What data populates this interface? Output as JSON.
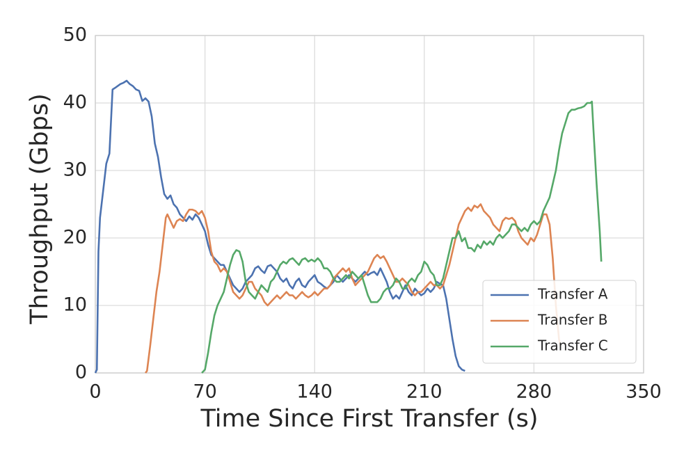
{
  "chart_data": {
    "type": "line",
    "xlabel": "Time Since First Transfer (s)",
    "ylabel": "Throughput (Gbps)",
    "xlim": [
      0,
      350
    ],
    "xticks": [
      0,
      70,
      140,
      210,
      280,
      350
    ],
    "ylim": [
      0,
      50
    ],
    "yticks": [
      0,
      10,
      20,
      30,
      40,
      50
    ],
    "grid": true,
    "legend": "lower right",
    "series": [
      {
        "name": "Transfer A",
        "color": "#4c72b0",
        "x": [
          0,
          1,
          2,
          3,
          5,
          7,
          9,
          11,
          13,
          16,
          18,
          20,
          22,
          24,
          26,
          28,
          30,
          32,
          34,
          36,
          38,
          40,
          42,
          44,
          46,
          48,
          50,
          52,
          54,
          56,
          58,
          60,
          62,
          64,
          66,
          68,
          70,
          72,
          74,
          76,
          78,
          80,
          82,
          84,
          86,
          88,
          90,
          92,
          94,
          96,
          98,
          100,
          102,
          104,
          106,
          108,
          110,
          112,
          114,
          116,
          118,
          120,
          122,
          124,
          126,
          128,
          130,
          132,
          134,
          136,
          138,
          140,
          142,
          144,
          146,
          148,
          150,
          152,
          154,
          156,
          158,
          160,
          162,
          164,
          166,
          168,
          170,
          172,
          174,
          176,
          178,
          180,
          182,
          184,
          186,
          188,
          190,
          192,
          194,
          196,
          198,
          200,
          202,
          204,
          206,
          208,
          210,
          212,
          214,
          216,
          218,
          220,
          222,
          224,
          226,
          228,
          230,
          232,
          234,
          236
        ],
        "values": [
          0,
          0.5,
          18,
          23,
          27,
          31,
          32.5,
          42,
          42.3,
          42.8,
          43.0,
          43.3,
          42.8,
          42.5,
          42,
          41.8,
          40.3,
          40.7,
          40.2,
          38,
          34,
          32,
          29,
          26.5,
          25.8,
          26.3,
          25,
          24.5,
          23.5,
          23,
          22.5,
          23.2,
          22.7,
          23.5,
          23,
          22,
          21,
          19,
          17.5,
          17,
          16.5,
          16,
          16,
          15,
          14,
          13,
          12.5,
          12,
          12.5,
          13.5,
          14,
          14.5,
          15.5,
          15.8,
          15.2,
          14.8,
          15.8,
          16,
          15.5,
          15,
          14,
          13.5,
          14,
          13,
          12.5,
          13.5,
          14,
          13,
          12.7,
          13.5,
          14,
          14.5,
          13.5,
          13.2,
          12.8,
          12.5,
          13,
          13.5,
          14.5,
          14,
          13.5,
          14,
          14.5,
          14,
          13.5,
          14,
          14.5,
          15,
          14.5,
          14.8,
          15,
          14.5,
          15.5,
          14.5,
          13.5,
          12,
          11,
          11.5,
          11,
          12,
          13,
          12,
          11.5,
          12.5,
          12,
          11.5,
          11.8,
          12.5,
          12,
          12.5,
          13.5,
          13.2,
          13,
          11,
          8,
          5,
          2.5,
          1,
          0.5,
          0.3
        ]
      },
      {
        "name": "Transfer B",
        "color": "#dd8452",
        "x": [
          32,
          33,
          35,
          37,
          39,
          41,
          43,
          45,
          46,
          48,
          50,
          52,
          54,
          56,
          58,
          60,
          62,
          64,
          66,
          68,
          70,
          72,
          74,
          76,
          78,
          80,
          82,
          84,
          86,
          88,
          90,
          92,
          94,
          96,
          98,
          100,
          102,
          104,
          106,
          108,
          110,
          112,
          114,
          116,
          118,
          120,
          122,
          124,
          126,
          128,
          130,
          132,
          134,
          136,
          138,
          140,
          142,
          144,
          146,
          148,
          150,
          152,
          154,
          156,
          158,
          160,
          162,
          164,
          166,
          168,
          170,
          172,
          174,
          176,
          178,
          180,
          182,
          184,
          186,
          188,
          190,
          192,
          194,
          196,
          198,
          200,
          202,
          204,
          206,
          208,
          210,
          212,
          214,
          216,
          218,
          220,
          222,
          224,
          226,
          228,
          230,
          232,
          234,
          236,
          238,
          240,
          242,
          244,
          246,
          248,
          250,
          252,
          254,
          256,
          258,
          260,
          262,
          264,
          266,
          268,
          270,
          272,
          274,
          276,
          278,
          280,
          282,
          284,
          286,
          288,
          290,
          292,
          294,
          296,
          297
        ],
        "values": [
          0,
          0.3,
          4,
          8,
          12,
          15,
          19,
          23,
          23.5,
          22.5,
          21.5,
          22.5,
          22.8,
          22.5,
          23.5,
          24.2,
          24.2,
          24,
          23.5,
          24,
          23,
          21,
          18,
          16.5,
          16,
          15,
          15.5,
          15,
          13.5,
          12,
          11.5,
          11,
          11.5,
          12.5,
          13.5,
          13.5,
          12.5,
          12,
          11.5,
          10.5,
          10,
          10.5,
          11,
          11.5,
          11,
          11.5,
          12,
          11.5,
          11.5,
          11,
          11.5,
          12,
          11.5,
          11.2,
          11.5,
          12,
          11.5,
          12,
          12.5,
          12.5,
          13,
          14,
          14.5,
          15,
          15.5,
          15,
          15.5,
          14,
          13,
          13.5,
          14,
          14.5,
          15,
          16,
          17,
          17.5,
          17,
          17.3,
          16.5,
          15.5,
          14.5,
          13.5,
          13.5,
          14,
          13.5,
          13,
          12,
          11.5,
          12,
          12,
          12.5,
          13,
          13.5,
          13,
          13,
          12.5,
          13,
          14.5,
          16,
          18,
          20,
          22,
          23,
          24,
          24.5,
          24,
          24.8,
          24.5,
          25,
          24,
          23.5,
          23,
          22,
          21.5,
          21,
          22.5,
          23,
          22.8,
          23,
          22.5,
          21,
          20,
          19.5,
          19,
          20,
          19.5,
          20.5,
          22,
          23.5,
          23.5,
          22,
          17,
          10,
          5,
          4
        ]
      },
      {
        "name": "Transfer C",
        "color": "#55a868",
        "x": [
          68,
          70,
          72,
          74,
          76,
          78,
          80,
          82,
          84,
          86,
          88,
          90,
          92,
          94,
          96,
          98,
          100,
          102,
          104,
          106,
          108,
          110,
          112,
          114,
          116,
          118,
          120,
          122,
          124,
          126,
          128,
          130,
          132,
          134,
          136,
          138,
          140,
          142,
          144,
          146,
          148,
          150,
          152,
          154,
          156,
          158,
          160,
          162,
          164,
          166,
          168,
          170,
          172,
          174,
          176,
          178,
          180,
          182,
          184,
          186,
          188,
          190,
          192,
          194,
          196,
          198,
          200,
          202,
          204,
          206,
          208,
          210,
          212,
          214,
          216,
          218,
          220,
          222,
          224,
          226,
          228,
          230,
          232,
          234,
          236,
          238,
          240,
          242,
          244,
          246,
          248,
          250,
          252,
          254,
          256,
          258,
          260,
          262,
          264,
          266,
          268,
          270,
          272,
          274,
          276,
          278,
          280,
          282,
          284,
          286,
          288,
          290,
          292,
          294,
          296,
          298,
          300,
          302,
          304,
          306,
          308,
          310,
          312,
          314,
          316,
          317,
          318,
          320,
          322,
          323
        ],
        "values": [
          0,
          0.5,
          3,
          6,
          8.5,
          10,
          11,
          12,
          14,
          16,
          17.5,
          18.2,
          18,
          16.5,
          13.5,
          12,
          11.5,
          11,
          12,
          13,
          12.5,
          12,
          13.5,
          14,
          15,
          16,
          16.5,
          16.2,
          16.8,
          17,
          16.5,
          16,
          16.8,
          17,
          16.5,
          16.8,
          16.5,
          17,
          16.5,
          15.5,
          15.5,
          15,
          14,
          13.5,
          13.5,
          14,
          14.5,
          14,
          15,
          14.5,
          14,
          14.5,
          13,
          11.5,
          10.5,
          10.5,
          10.5,
          11,
          12,
          12.5,
          12.5,
          13,
          14,
          13.5,
          12.5,
          12.5,
          13.5,
          14,
          13.5,
          14.5,
          15,
          16.5,
          16,
          15,
          14.5,
          13,
          13,
          14,
          16,
          18,
          20,
          20,
          21,
          19.5,
          20,
          18.5,
          18.5,
          18,
          19,
          18.5,
          19.5,
          19,
          19.5,
          19,
          20,
          20.5,
          20,
          20.5,
          21,
          22,
          22,
          21.5,
          21,
          21.5,
          21,
          22,
          22.5,
          22,
          22.5,
          24,
          25,
          26,
          28,
          30,
          33,
          35.5,
          37,
          38.5,
          39,
          39,
          39.2,
          39.3,
          39.5,
          40,
          40,
          40.2,
          36,
          28,
          21,
          16.5
        ]
      }
    ]
  }
}
